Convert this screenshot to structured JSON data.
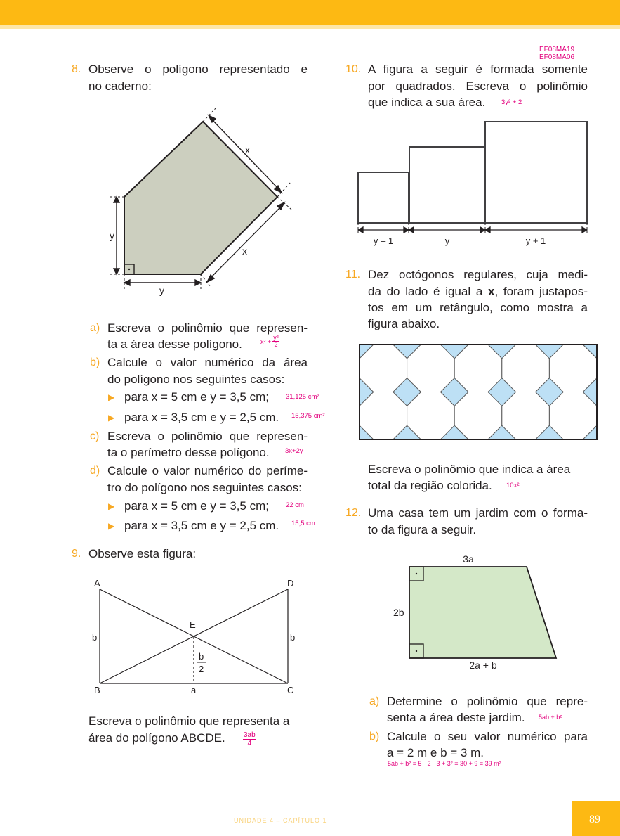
{
  "codes": [
    "EF08MA19",
    "EF08MA06"
  ],
  "q8": {
    "number": "8.",
    "text1": "Observe o polígono representado e",
    "text2": "no caderno:",
    "fig": {
      "x_top": "x",
      "x_bottom": "x",
      "y_left": "y",
      "y_bottom": "y"
    },
    "a": {
      "letter": "a)",
      "l1": "Escreva o polinômio que represen-",
      "l2": "ta a área desse polígono.",
      "ans": "x² + y²/2",
      "ans_a": "x² +",
      "ans_n": "y²",
      "ans_d": "2"
    },
    "b": {
      "letter": "b)",
      "l1": "Calcule o valor numérico da área",
      "l2": "do polígono nos seguintes casos:",
      "i1": "para x = 5 cm e y = 3,5 cm;",
      "a1": "31,125 cm²",
      "i2": "para x = 3,5 cm e y = 2,5 cm.",
      "a2": "15,375 cm²"
    },
    "c": {
      "letter": "c)",
      "l1": "Escreva o polinômio que represen-",
      "l2": "ta o perímetro desse polígono.",
      "ans": "3x+2y"
    },
    "d": {
      "letter": "d)",
      "l1": "Calcule o valor numérico do períme-",
      "l2": "tro do polígono nos seguintes casos:",
      "i1": "para x = 5 cm e y = 3,5 cm;",
      "a1": "22 cm",
      "i2": "para x = 3,5 cm e y = 2,5 cm.",
      "a2": "15,5 cm"
    }
  },
  "q9": {
    "number": "9.",
    "text": "Observe esta figura:",
    "fig": {
      "A": "A",
      "B": "B",
      "C": "C",
      "D": "D",
      "E": "E",
      "b_left": "b",
      "b_right": "b",
      "b_num": "b",
      "b_den": "2",
      "a": "a"
    },
    "t1": "Escreva o polinômio que representa a",
    "t2": "área do polígono ABCDE.",
    "ans_n": "3ab",
    "ans_d": "4"
  },
  "q10": {
    "number": "10.",
    "l1": "A figura a seguir é formada somente",
    "l2": "por quadrados. Escreva o polinômio",
    "l3": "que indica a sua área.",
    "ans": "3y² + 2",
    "labels": [
      "y – 1",
      "y",
      "y + 1"
    ]
  },
  "q11": {
    "number": "11.",
    "l1": "Dez octógonos regulares, cuja medi-",
    "l2a": "da do lado é igual a ",
    "l2b": "x",
    "l2c": ", foram justapos-",
    "l3": "tos em um retângulo, como mostra a",
    "l4": "figura abaixo.",
    "t1": "Escreva o polinômio que indica a área",
    "t2": "total da região colorida.",
    "ans": "10x²",
    "colors": {
      "fill": "#bde0f5",
      "stroke": "#555555"
    }
  },
  "q12": {
    "number": "12.",
    "l1": "Uma casa tem um jardim com o forma-",
    "l2": "to da figura a seguir.",
    "fig": {
      "top": "3a",
      "left": "2b",
      "bottom": "2a + b"
    },
    "a": {
      "letter": "a)",
      "l1": "Determine o polinômio que repre-",
      "l2": "senta a área deste jardim.",
      "ans": "5ab + b²"
    },
    "b": {
      "letter": "b)",
      "l1": "Calcule o seu valor numérico para",
      "l2": "a = 2 m e b = 3 m.",
      "ans": "5ab + b² = 5 · 2 · 3 + 3² = 30 + 9 = 39 m²"
    }
  },
  "footer": {
    "text": "UNIDADE 4  –  CAPÍTULO 1",
    "page": "89"
  },
  "colors": {
    "accent": "#fdb913",
    "answer": "#e3007d",
    "number": "#f7a823",
    "polygon": "#cccfbf",
    "garden": "#d4e8c8"
  }
}
